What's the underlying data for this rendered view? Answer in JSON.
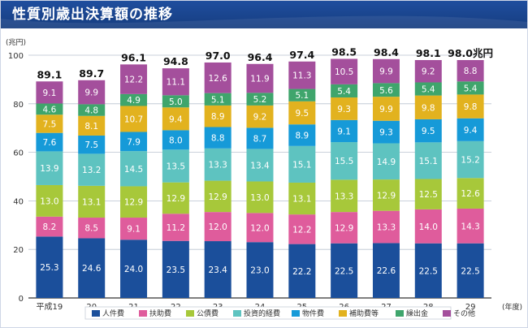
{
  "title": "性質別歳出決算額の推移",
  "colors": {
    "header": "#1f4e9e",
    "header_dark": "#163d80",
    "grid": "#b9c2cf",
    "axis": "#333333",
    "segment_label": "#ffffff"
  },
  "chart_data": {
    "type": "bar",
    "stacked": true,
    "title": "性質別歳出決算額の推移",
    "ylabel": "(兆円)",
    "xlabel": "(年度)",
    "ylim": [
      0,
      100
    ],
    "yticks": [
      0,
      20,
      40,
      60,
      80,
      100
    ],
    "grid": true,
    "categories": [
      "平成19",
      "20",
      "21",
      "22",
      "23",
      "24",
      "25",
      "26",
      "27",
      "28",
      "29"
    ],
    "series": [
      {
        "name": "人件費",
        "color": "#1b4f9b",
        "values": [
          25.3,
          24.6,
          24.0,
          23.5,
          23.4,
          23.0,
          22.2,
          22.5,
          22.6,
          22.5,
          22.5
        ]
      },
      {
        "name": "扶助費",
        "color": "#df5c9c",
        "values": [
          8.2,
          8.5,
          9.1,
          11.2,
          12.0,
          12.0,
          12.2,
          12.9,
          13.3,
          14.0,
          14.3
        ]
      },
      {
        "name": "公債費",
        "color": "#a7c83a",
        "values": [
          13.0,
          13.1,
          12.9,
          12.9,
          12.9,
          13.0,
          13.1,
          13.3,
          12.9,
          12.5,
          12.6
        ]
      },
      {
        "name": "投資的経費",
        "color": "#5ec3c0",
        "values": [
          13.9,
          13.2,
          14.5,
          13.5,
          13.3,
          13.4,
          15.1,
          15.5,
          14.9,
          15.1,
          15.2
        ]
      },
      {
        "name": "物件費",
        "color": "#169ad8",
        "values": [
          7.6,
          7.5,
          7.9,
          8.0,
          8.8,
          8.7,
          8.9,
          9.1,
          9.3,
          9.5,
          9.4
        ]
      },
      {
        "name": "補助費等",
        "color": "#e2b21f",
        "values": [
          7.5,
          8.1,
          10.7,
          9.4,
          8.9,
          9.2,
          9.5,
          9.3,
          9.9,
          9.8,
          9.8
        ]
      },
      {
        "name": "繰出金",
        "color": "#3fa56c",
        "values": [
          4.6,
          4.8,
          4.9,
          5.0,
          5.1,
          5.2,
          5.1,
          5.4,
          5.6,
          5.4,
          5.4
        ]
      },
      {
        "name": "その他",
        "color": "#a44f9c",
        "values": [
          9.1,
          9.9,
          12.2,
          11.1,
          12.6,
          11.9,
          11.3,
          10.5,
          9.9,
          9.2,
          8.8
        ]
      }
    ],
    "totals": [
      "89.1",
      "89.7",
      "96.1",
      "94.8",
      "97.0",
      "96.4",
      "97.4",
      "98.5",
      "98.4",
      "98.1",
      "98.0兆円"
    ]
  }
}
